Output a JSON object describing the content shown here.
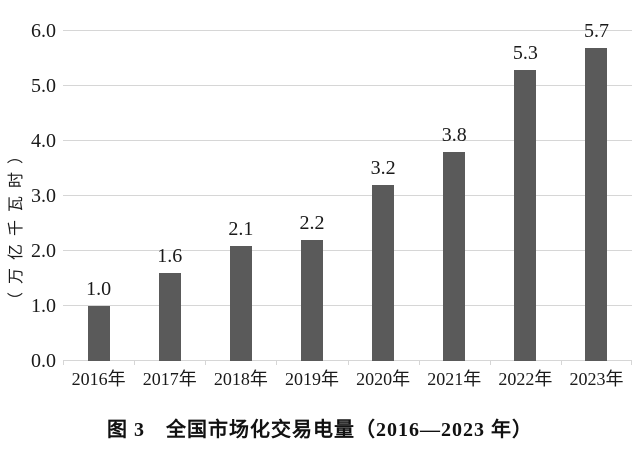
{
  "chart_data": {
    "type": "bar",
    "title": "图 3　全国市场化交易电量（2016—2023 年）",
    "categories": [
      "2016年",
      "2017年",
      "2018年",
      "2019年",
      "2020年",
      "2021年",
      "2022年",
      "2023年"
    ],
    "values": [
      1.0,
      1.6,
      2.1,
      2.2,
      3.2,
      3.8,
      5.3,
      5.7
    ],
    "value_labels": [
      "1.0",
      "1.6",
      "2.1",
      "2.2",
      "3.2",
      "3.8",
      "5.3",
      "5.7"
    ],
    "xlabel": "",
    "ylabel": "（万亿千瓦时）",
    "y_ticks": [
      "0.0",
      "1.0",
      "2.0",
      "3.0",
      "4.0",
      "5.0",
      "6.0"
    ],
    "ylim": [
      0,
      6
    ],
    "grid": true,
    "legend": "none",
    "bar_color": "#5a5a5a",
    "gridline_color": "#d6d6d6",
    "text_color": "#1a1a1a"
  }
}
